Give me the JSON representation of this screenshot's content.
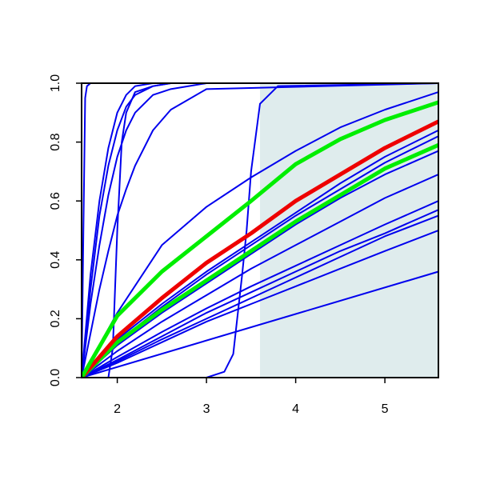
{
  "chart_data": {
    "type": "line",
    "xlim": [
      1.6,
      5.6
    ],
    "ylim": [
      0,
      1
    ],
    "xticks": [
      2,
      3,
      4,
      5
    ],
    "yticks": [
      {
        "value": 0,
        "label": "0.0"
      },
      0.2,
      0.4,
      0.6,
      0.8,
      {
        "value": 1,
        "label": "1.0"
      }
    ],
    "shade": {
      "x": [
        3.6,
        5.6
      ],
      "color": "#dfeced"
    },
    "series": [
      {
        "color": "#0000ee",
        "width": 2,
        "x": [
          1.6,
          1.62,
          1.64,
          1.66,
          1.7,
          5.6
        ],
        "values": [
          0,
          0.5,
          0.95,
          0.99,
          1,
          1
        ]
      },
      {
        "color": "#0000ee",
        "width": 2,
        "x": [
          1.6,
          1.7,
          1.8,
          1.9,
          2.0,
          2.1,
          2.2,
          2.4,
          2.6,
          3.0,
          5.6
        ],
        "values": [
          0,
          0.35,
          0.6,
          0.78,
          0.9,
          0.96,
          0.99,
          1,
          1,
          1,
          1
        ]
      },
      {
        "color": "#0000ee",
        "width": 2,
        "x": [
          1.6,
          1.7,
          1.8,
          1.9,
          2.0,
          2.1,
          2.2,
          2.4,
          2.6,
          3.0,
          5.6
        ],
        "values": [
          0,
          0.3,
          0.55,
          0.72,
          0.84,
          0.92,
          0.96,
          0.99,
          1,
          1,
          1
        ]
      },
      {
        "color": "#0000ee",
        "width": 2,
        "x": [
          1.6,
          1.7,
          1.8,
          1.9,
          2.0,
          2.1,
          2.2,
          2.4,
          2.6,
          3.0,
          5.6
        ],
        "values": [
          0,
          0.25,
          0.45,
          0.62,
          0.75,
          0.84,
          0.9,
          0.96,
          0.98,
          1,
          1
        ]
      },
      {
        "color": "#0000ee",
        "width": 2,
        "x": [
          1.6,
          1.7,
          1.8,
          1.9,
          2.0,
          2.1,
          2.2,
          2.4,
          2.6,
          3.0,
          5.6
        ],
        "values": [
          0,
          0.15,
          0.3,
          0.43,
          0.55,
          0.64,
          0.72,
          0.84,
          0.91,
          0.98,
          1
        ]
      },
      {
        "color": "#0000ee",
        "width": 2,
        "x": [
          1.6,
          1.9,
          1.95,
          2.0,
          2.05,
          2.1,
          2.2,
          2.4,
          2.6,
          3.0,
          5.6
        ],
        "values": [
          0,
          0,
          0.1,
          0.5,
          0.8,
          0.9,
          0.97,
          0.99,
          1,
          1,
          1
        ]
      },
      {
        "color": "#0000ee",
        "width": 2,
        "x": [
          1.6,
          3.0,
          3.2,
          3.3,
          3.4,
          3.45,
          3.5,
          3.6,
          3.8,
          5.6
        ],
        "values": [
          0,
          0,
          0.02,
          0.08,
          0.35,
          0.5,
          0.7,
          0.93,
          0.99,
          1
        ]
      },
      {
        "color": "#0000ee",
        "width": 2,
        "x": [
          1.6,
          2.0,
          2.5,
          3.0,
          3.5,
          4.0,
          4.5,
          5.0,
          5.6
        ],
        "values": [
          0,
          0.22,
          0.45,
          0.58,
          0.68,
          0.77,
          0.85,
          0.91,
          0.97
        ]
      },
      {
        "color": "#0000ee",
        "width": 2,
        "x": [
          1.6,
          2.0,
          2.5,
          3.0,
          3.5,
          4.0,
          4.5,
          5.0,
          5.6
        ],
        "values": [
          0,
          0.13,
          0.25,
          0.36,
          0.46,
          0.56,
          0.66,
          0.75,
          0.84
        ]
      },
      {
        "color": "#0000ee",
        "width": 2,
        "x": [
          1.6,
          2.0,
          2.5,
          3.0,
          3.5,
          4.0,
          4.5,
          5.0,
          5.6
        ],
        "values": [
          0,
          0.12,
          0.24,
          0.35,
          0.45,
          0.55,
          0.64,
          0.73,
          0.82
        ]
      },
      {
        "color": "#0000ee",
        "width": 2,
        "x": [
          1.6,
          2.0,
          2.5,
          3.0,
          3.5,
          4.0,
          4.5,
          5.0,
          5.6
        ],
        "values": [
          0,
          0.11,
          0.22,
          0.32,
          0.42,
          0.52,
          0.61,
          0.69,
          0.77
        ]
      },
      {
        "color": "#0000ee",
        "width": 2,
        "x": [
          1.6,
          2.0,
          2.5,
          3.0,
          3.5,
          4.0,
          4.5,
          5.0,
          5.6
        ],
        "values": [
          0,
          0.09,
          0.19,
          0.28,
          0.37,
          0.45,
          0.53,
          0.61,
          0.69
        ]
      },
      {
        "color": "#0000ee",
        "width": 2,
        "x": [
          1.6,
          2.0,
          2.5,
          3.0,
          3.5,
          4.0,
          4.5,
          5.0,
          5.6
        ],
        "values": [
          0,
          0.07,
          0.155,
          0.235,
          0.31,
          0.38,
          0.45,
          0.52,
          0.6
        ]
      },
      {
        "color": "#0000ee",
        "width": 2,
        "x": [
          1.6,
          2.0,
          2.5,
          3.0,
          3.5,
          4.0,
          4.5,
          5.0,
          5.6
        ],
        "values": [
          0,
          0.06,
          0.14,
          0.22,
          0.29,
          0.36,
          0.43,
          0.49,
          0.57
        ]
      },
      {
        "color": "#0000ee",
        "width": 2,
        "x": [
          1.6,
          2.0,
          2.5,
          3.0,
          3.5,
          4.0,
          4.5,
          5.0,
          5.6
        ],
        "values": [
          0,
          0.055,
          0.13,
          0.2,
          0.27,
          0.34,
          0.41,
          0.48,
          0.55
        ]
      },
      {
        "color": "#0000ee",
        "width": 2,
        "x": [
          1.6,
          2.0,
          2.5,
          3.0,
          3.5,
          4.0,
          4.5,
          5.0,
          5.6
        ],
        "values": [
          0,
          0.05,
          0.12,
          0.19,
          0.25,
          0.31,
          0.37,
          0.43,
          0.5
        ]
      },
      {
        "color": "#0000ee",
        "width": 2,
        "x": [
          1.6,
          5.6
        ],
        "values": [
          0,
          0.36
        ]
      },
      {
        "color": "#00ee00",
        "width": 5,
        "x": [
          1.6,
          2.0,
          2.5,
          3.0,
          3.5,
          4.0,
          4.5,
          5.0,
          5.6
        ],
        "values": [
          0,
          0.12,
          0.23,
          0.33,
          0.43,
          0.53,
          0.62,
          0.71,
          0.79
        ]
      },
      {
        "color": "#ee0000",
        "width": 5,
        "x": [
          1.6,
          2.0,
          2.5,
          3.0,
          3.5,
          4.0,
          4.5,
          5.0,
          5.6
        ],
        "values": [
          0,
          0.14,
          0.27,
          0.39,
          0.49,
          0.6,
          0.69,
          0.78,
          0.87
        ]
      },
      {
        "color": "#00ee00",
        "width": 5,
        "x": [
          1.6,
          2.0,
          2.5,
          3.0,
          3.5,
          4.0,
          4.5,
          5.0,
          5.6
        ],
        "values": [
          0,
          0.21,
          0.36,
          0.48,
          0.6,
          0.725,
          0.81,
          0.875,
          0.935
        ]
      }
    ]
  }
}
